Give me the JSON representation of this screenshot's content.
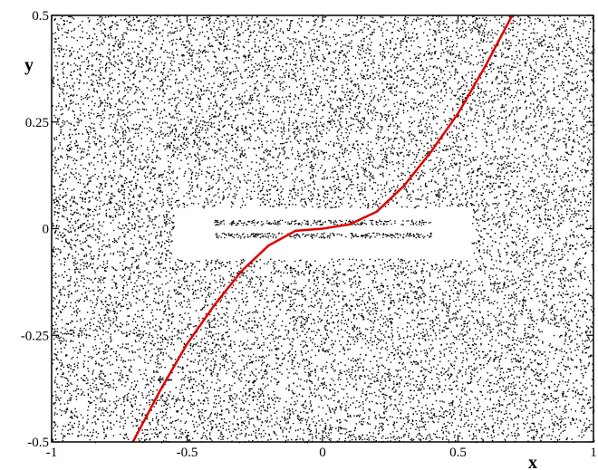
{
  "chart_data": {
    "type": "scatter",
    "title": "",
    "xlabel": "x",
    "ylabel": "y",
    "xlim": [
      -1,
      1
    ],
    "ylim": [
      -0.5,
      0.5
    ],
    "x_ticks": [
      -1,
      -0.5,
      0,
      0.5,
      1
    ],
    "x_tick_labels": [
      "-1",
      "-0.5",
      "0",
      "0.5",
      "1"
    ],
    "y_ticks": [
      -0.5,
      -0.25,
      0,
      0.25,
      0.5
    ],
    "y_tick_labels": [
      "-0.5",
      "-0.25",
      "0",
      "0.25",
      "0.5"
    ],
    "grid": false,
    "legend": "none",
    "background_scatter": {
      "color": "#000000",
      "description_of_values": "dense chaotic orbit points filling the whole domain except a thin band around y = 0",
      "gap_band_y": [
        -0.07,
        0.05
      ]
    },
    "series": [
      {
        "color": "#e00000",
        "style": "line",
        "x": [
          -0.7,
          -0.6,
          -0.5,
          -0.4,
          -0.3,
          -0.2,
          -0.1,
          0,
          0.1,
          0.2,
          0.3,
          0.4,
          0.5,
          0.6,
          0.7
        ],
        "y": [
          -0.5,
          -0.38,
          -0.27,
          -0.18,
          -0.1,
          -0.04,
          -0.005,
          0,
          0.01,
          0.04,
          0.1,
          0.18,
          0.27,
          0.38,
          0.5
        ]
      }
    ]
  }
}
